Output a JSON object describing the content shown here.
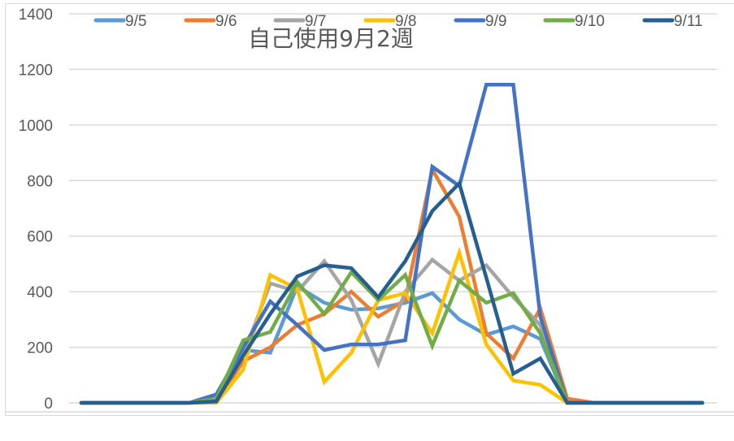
{
  "chart_data": {
    "type": "line",
    "title": "自己使用9月2週",
    "xlabel": "",
    "ylabel": "",
    "x": [
      0,
      1,
      2,
      3,
      4,
      5,
      6,
      7,
      8,
      9,
      10,
      11,
      12,
      13,
      14,
      15,
      16,
      17,
      18,
      19,
      20,
      21,
      22,
      23
    ],
    "ylim": [
      0,
      1400
    ],
    "yticks": [
      0,
      200,
      400,
      600,
      800,
      1000,
      1200,
      1400
    ],
    "grid": true,
    "legend_position": "top",
    "series": [
      {
        "name": "9/5",
        "color": "#5B9BD5",
        "values": [
          0,
          0,
          0,
          0,
          0,
          10,
          190,
          180,
          420,
          360,
          335,
          340,
          360,
          395,
          300,
          245,
          275,
          230,
          0,
          0,
          0,
          0,
          0,
          0
        ]
      },
      {
        "name": "9/6",
        "color": "#ED7D31",
        "values": [
          0,
          0,
          0,
          0,
          0,
          5,
          150,
          200,
          280,
          320,
          400,
          310,
          370,
          840,
          670,
          250,
          160,
          340,
          15,
          0,
          0,
          0,
          0,
          0
        ]
      },
      {
        "name": "9/7",
        "color": "#A5A5A5",
        "values": [
          0,
          0,
          0,
          0,
          0,
          5,
          170,
          430,
          400,
          510,
          370,
          140,
          400,
          515,
          440,
          495,
          380,
          280,
          0,
          0,
          0,
          0,
          0,
          0
        ]
      },
      {
        "name": "9/8",
        "color": "#FFC000",
        "values": [
          0,
          0,
          0,
          0,
          0,
          0,
          120,
          460,
          410,
          75,
          180,
          370,
          395,
          250,
          540,
          210,
          80,
          65,
          0,
          0,
          0,
          0,
          0,
          0
        ]
      },
      {
        "name": "9/9",
        "color": "#4472C4",
        "values": [
          0,
          0,
          0,
          0,
          0,
          30,
          200,
          365,
          280,
          190,
          210,
          210,
          225,
          850,
          780,
          1145,
          1145,
          310,
          0,
          0,
          0,
          0,
          0,
          0
        ]
      },
      {
        "name": "9/10",
        "color": "#70AD47",
        "values": [
          0,
          0,
          0,
          0,
          0,
          15,
          225,
          255,
          435,
          320,
          470,
          370,
          460,
          205,
          440,
          360,
          395,
          250,
          0,
          0,
          0,
          0,
          0,
          0
        ]
      },
      {
        "name": "9/11",
        "color": "#255E91",
        "values": [
          0,
          0,
          0,
          0,
          0,
          5,
          170,
          320,
          455,
          495,
          485,
          380,
          510,
          690,
          790,
          450,
          105,
          160,
          0,
          0,
          0,
          0,
          0,
          0
        ]
      }
    ]
  }
}
